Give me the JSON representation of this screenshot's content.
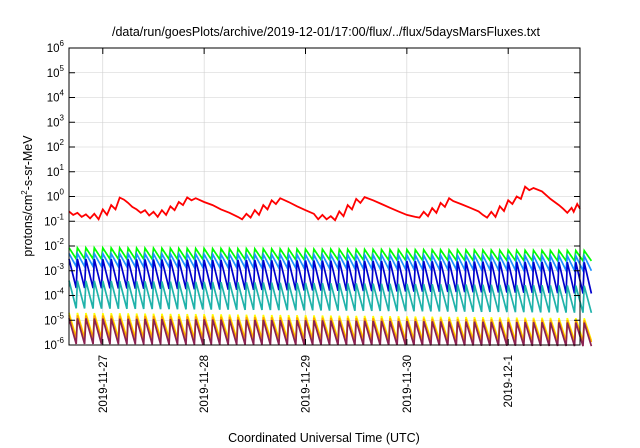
{
  "chart_data": {
    "type": "line",
    "title": "/data/run/goesPlots/archive/2019-12-01/17:00/flux/../flux/5daysMarsFluxes.txt",
    "xlabel": "Coordinated Universal Time (UTC)",
    "ylabel": {
      "base": "protons/cm",
      "sup": "2",
      "rest": "-s-sr-MeV"
    },
    "y_scale": "log",
    "ylim": [
      1e-06,
      1000000.0
    ],
    "y_ticks": [
      {
        "base": "10",
        "exp": "-6",
        "value": 1e-06
      },
      {
        "base": "10",
        "exp": "-5",
        "value": 1e-05
      },
      {
        "base": "10",
        "exp": "-4",
        "value": 0.0001
      },
      {
        "base": "10",
        "exp": "-3",
        "value": 0.001
      },
      {
        "base": "10",
        "exp": "-2",
        "value": 0.01
      },
      {
        "base": "10",
        "exp": "-1",
        "value": 0.1
      },
      {
        "base": "10",
        "exp": "0",
        "value": 1
      },
      {
        "base": "10",
        "exp": "1",
        "value": 10
      },
      {
        "base": "10",
        "exp": "2",
        "value": 100
      },
      {
        "base": "10",
        "exp": "3",
        "value": 1000
      },
      {
        "base": "10",
        "exp": "4",
        "value": 10000
      },
      {
        "base": "10",
        "exp": "5",
        "value": 100000
      },
      {
        "base": "10",
        "exp": "6",
        "value": 1000000
      }
    ],
    "xlim": [
      "2019-11-26T16:00",
      "2019-12-01T17:00"
    ],
    "x_ticks": [
      {
        "label": "2019-11-27",
        "value": "2019-11-27T00:00"
      },
      {
        "label": "2019-11-28",
        "value": "2019-11-28T00:00"
      },
      {
        "label": "2019-11-29",
        "value": "2019-11-29T00:00"
      },
      {
        "label": "2019-11-30",
        "value": "2019-11-30T00:00"
      },
      {
        "label": "2019-12-1",
        "value": "2019-12-01T00:00"
      }
    ],
    "grid": true,
    "legend": "none",
    "series": [
      {
        "color": "#ff0000",
        "values": [
          [
            "2019-11-26T16:00",
            0.25
          ],
          [
            "2019-11-26T17:00",
            0.18
          ],
          [
            "2019-11-26T18:00",
            0.22
          ],
          [
            "2019-11-26T19:00",
            0.15
          ],
          [
            "2019-11-26T20:00",
            0.19
          ],
          [
            "2019-11-26T21:00",
            0.13
          ],
          [
            "2019-11-26T22:00",
            0.2
          ],
          [
            "2019-11-26T23:00",
            0.12
          ],
          [
            "2019-11-27T00:00",
            0.3
          ],
          [
            "2019-11-27T01:00",
            0.18
          ],
          [
            "2019-11-27T02:00",
            0.45
          ],
          [
            "2019-11-27T03:00",
            0.3
          ],
          [
            "2019-11-27T04:00",
            0.9
          ],
          [
            "2019-11-27T05:00",
            0.75
          ],
          [
            "2019-11-27T06:00",
            0.55
          ],
          [
            "2019-11-27T07:00",
            0.38
          ],
          [
            "2019-11-27T08:00",
            0.3
          ],
          [
            "2019-11-27T09:00",
            0.22
          ],
          [
            "2019-11-27T10:00",
            0.28
          ],
          [
            "2019-11-27T11:00",
            0.17
          ],
          [
            "2019-11-27T12:00",
            0.24
          ],
          [
            "2019-11-27T13:00",
            0.15
          ],
          [
            "2019-11-27T14:00",
            0.28
          ],
          [
            "2019-11-27T15:00",
            0.18
          ],
          [
            "2019-11-27T16:00",
            0.4
          ],
          [
            "2019-11-27T17:00",
            0.28
          ],
          [
            "2019-11-27T18:00",
            0.6
          ],
          [
            "2019-11-27T19:00",
            0.45
          ],
          [
            "2019-11-27T20:00",
            0.92
          ],
          [
            "2019-11-27T21:00",
            0.7
          ],
          [
            "2019-11-27T22:00",
            0.85
          ],
          [
            "2019-11-28T00:00",
            0.6
          ],
          [
            "2019-11-28T02:00",
            0.45
          ],
          [
            "2019-11-28T04:00",
            0.3
          ],
          [
            "2019-11-28T06:00",
            0.22
          ],
          [
            "2019-11-28T08:00",
            0.15
          ],
          [
            "2019-11-28T09:00",
            0.12
          ],
          [
            "2019-11-28T10:00",
            0.2
          ],
          [
            "2019-11-28T11:00",
            0.14
          ],
          [
            "2019-11-28T12:00",
            0.28
          ],
          [
            "2019-11-28T13:00",
            0.18
          ],
          [
            "2019-11-28T14:00",
            0.45
          ],
          [
            "2019-11-28T15:00",
            0.3
          ],
          [
            "2019-11-28T16:00",
            0.7
          ],
          [
            "2019-11-28T17:00",
            0.5
          ],
          [
            "2019-11-28T18:00",
            0.85
          ],
          [
            "2019-11-28T20:00",
            0.6
          ],
          [
            "2019-11-28T22:00",
            0.4
          ],
          [
            "2019-11-29T00:00",
            0.28
          ],
          [
            "2019-11-29T02:00",
            0.2
          ],
          [
            "2019-11-29T03:00",
            0.12
          ],
          [
            "2019-11-29T04:00",
            0.18
          ],
          [
            "2019-11-29T05:00",
            0.12
          ],
          [
            "2019-11-29T06:00",
            0.16
          ],
          [
            "2019-11-29T07:00",
            0.11
          ],
          [
            "2019-11-29T08:00",
            0.25
          ],
          [
            "2019-11-29T09:00",
            0.16
          ],
          [
            "2019-11-29T10:00",
            0.45
          ],
          [
            "2019-11-29T11:00",
            0.3
          ],
          [
            "2019-11-29T12:00",
            0.8
          ],
          [
            "2019-11-29T13:00",
            0.55
          ],
          [
            "2019-11-29T14:00",
            0.95
          ],
          [
            "2019-11-29T16:00",
            0.7
          ],
          [
            "2019-11-29T18:00",
            0.5
          ],
          [
            "2019-11-29T20:00",
            0.35
          ],
          [
            "2019-11-29T22:00",
            0.25
          ],
          [
            "2019-11-30T00:00",
            0.18
          ],
          [
            "2019-11-30T02:00",
            0.15
          ],
          [
            "2019-11-30T03:00",
            0.14
          ],
          [
            "2019-11-30T04:00",
            0.24
          ],
          [
            "2019-11-30T05:00",
            0.16
          ],
          [
            "2019-11-30T06:00",
            0.34
          ],
          [
            "2019-11-30T07:00",
            0.22
          ],
          [
            "2019-11-30T08:00",
            0.55
          ],
          [
            "2019-11-30T09:00",
            0.38
          ],
          [
            "2019-11-30T10:00",
            0.85
          ],
          [
            "2019-11-30T11:00",
            0.65
          ],
          [
            "2019-11-30T13:00",
            0.48
          ],
          [
            "2019-11-30T15:00",
            0.35
          ],
          [
            "2019-11-30T17:00",
            0.25
          ],
          [
            "2019-11-30T18:00",
            0.18
          ],
          [
            "2019-11-30T19:00",
            0.14
          ],
          [
            "2019-11-30T20:00",
            0.24
          ],
          [
            "2019-11-30T21:00",
            0.15
          ],
          [
            "2019-11-30T22:00",
            0.4
          ],
          [
            "2019-11-30T23:00",
            0.26
          ],
          [
            "2019-12-01T00:00",
            0.7
          ],
          [
            "2019-12-01T01:00",
            0.5
          ],
          [
            "2019-12-01T02:00",
            1.0
          ],
          [
            "2019-12-01T03:00",
            0.8
          ],
          [
            "2019-12-01T04:00",
            2.5
          ],
          [
            "2019-12-01T05:00",
            1.8
          ],
          [
            "2019-12-01T06:00",
            2.2
          ],
          [
            "2019-12-01T08:00",
            1.6
          ],
          [
            "2019-12-01T10:00",
            0.8
          ],
          [
            "2019-12-01T12:00",
            0.45
          ],
          [
            "2019-12-01T13:00",
            0.32
          ],
          [
            "2019-12-01T14:00",
            0.22
          ],
          [
            "2019-12-01T15:00",
            0.35
          ],
          [
            "2019-12-01T15:30",
            0.24
          ],
          [
            "2019-12-01T16:20",
            0.5
          ],
          [
            "2019-12-01T17:00",
            0.32
          ]
        ]
      },
      {
        "color": "#00ff00",
        "peak": 0.0085,
        "trough": 0.003,
        "peak_end": 0.0065,
        "trough_end": 0.0025
      },
      {
        "color": "#1e90ff",
        "peak": 0.005,
        "trough": 0.0015,
        "peak_end": 0.004,
        "trough_end": 0.001
      },
      {
        "color": "#0000cd",
        "peak": 0.003,
        "trough": 0.0002,
        "peak_end": 0.0022,
        "trough_end": 0.00012
      },
      {
        "color": "#20b2aa",
        "peak": 0.0004,
        "trough": 3e-05,
        "peak_end": 0.00025,
        "trough_end": 2e-05
      },
      {
        "color": "#ffff00",
        "peak": 2e-05,
        "trough": 2e-06,
        "peak_end": 1.2e-05,
        "trough_end": 1.5e-06
      },
      {
        "color": "#ffa500",
        "peak": 1.6e-05,
        "trough": 1.8e-06,
        "peak_end": 1e-05,
        "trough_end": 1.3e-06
      },
      {
        "color": "#8b2252",
        "peak": 1.2e-05,
        "trough": 1.1e-06,
        "peak_end": 8e-06,
        "trough_end": 9e-07
      }
    ]
  }
}
